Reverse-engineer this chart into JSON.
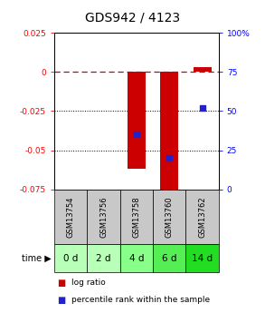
{
  "title": "GDS942 / 4123",
  "samples": [
    "GSM13754",
    "GSM13756",
    "GSM13758",
    "GSM13760",
    "GSM13762"
  ],
  "time_labels": [
    "0 d",
    "2 d",
    "4 d",
    "6 d",
    "14 d"
  ],
  "log_ratios": [
    0.0,
    0.0,
    -0.062,
    -0.085,
    0.003
  ],
  "percentile_ranks": [
    null,
    null,
    35,
    20,
    52
  ],
  "ylim": [
    -0.075,
    0.025
  ],
  "yticks_left": [
    0.025,
    0,
    -0.025,
    -0.05,
    -0.075
  ],
  "yticks_right": [
    100,
    75,
    50,
    25,
    0
  ],
  "bar_width": 0.55,
  "bar_color": "#cc0000",
  "dot_color": "#2222cc",
  "zero_line_color": "#cc0000",
  "bg_color": "#ffffff",
  "plot_bg": "#ffffff",
  "gsm_bg": "#c8c8c8",
  "time_bg_colors": [
    "#b8ffb8",
    "#b8ffb8",
    "#88ff88",
    "#55ee55",
    "#22dd22"
  ],
  "title_fontsize": 10,
  "tick_fontsize": 6.5,
  "gsm_fontsize": 6,
  "time_fontsize": 7.5,
  "legend_fontsize": 6.5
}
